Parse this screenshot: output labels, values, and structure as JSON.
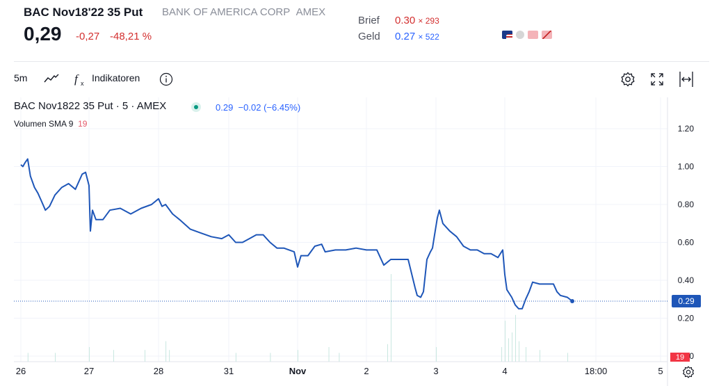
{
  "quote": {
    "symbol": "BAC Nov18'22 35 Put",
    "company": "BANK OF AMERICA CORP",
    "exchange": "AMEX",
    "last": "0,29",
    "change": "-0,27",
    "change_pct": "-48,21 %",
    "ask_label": "Brief",
    "ask_price": "0.30",
    "ask_size": "× 293",
    "bid_label": "Geld",
    "bid_price": "0.27",
    "bid_size": "× 522",
    "colors": {
      "down": "#d32f2f",
      "bid": "#2962ff"
    }
  },
  "toolbar": {
    "interval": "5m",
    "indicators_label": "Indikatoren",
    "icons": [
      "line-chart-icon",
      "fx-icon",
      "info-icon",
      "settings-gear-icon",
      "fullscreen-icon",
      "expand-horizontal-icon"
    ]
  },
  "legend": {
    "title": "BAC Nov1822 35 Put · 5 · AMEX",
    "last": "0.29",
    "change": "−0.02",
    "change_pct": "(−6.45%)",
    "volume_label": "Volumen SMA 9",
    "volume_value": "19"
  },
  "chart_data": {
    "type": "line",
    "title": "BAC Nov1822 35 Put · 5 · AMEX",
    "x_ticks": [
      "26",
      "27",
      "28",
      "31",
      "Nov",
      "2",
      "3",
      "4",
      "18:00",
      "5"
    ],
    "y_ticks": [
      "1.20",
      "1.00",
      "0.80",
      "0.60",
      "0.40",
      "0.20",
      "0.00"
    ],
    "ylim": [
      0,
      1.3
    ],
    "grid": true,
    "line_color": "#1e56b8",
    "last_value_label": "0.29",
    "volume_sma_label": "19",
    "series": [
      {
        "values": [
          [
            0.0,
            1.01
          ],
          [
            0.03,
            1.0
          ],
          [
            0.06,
            1.02
          ],
          [
            0.1,
            1.04
          ],
          [
            0.14,
            0.95
          ],
          [
            0.2,
            0.89
          ],
          [
            0.25,
            0.86
          ],
          [
            0.3,
            0.82
          ],
          [
            0.36,
            0.77
          ],
          [
            0.42,
            0.79
          ],
          [
            0.5,
            0.85
          ],
          [
            0.6,
            0.89
          ],
          [
            0.7,
            0.91
          ],
          [
            0.8,
            0.88
          ],
          [
            0.9,
            0.96
          ],
          [
            0.95,
            0.97
          ],
          [
            1.0,
            0.9
          ],
          [
            1.02,
            0.66
          ],
          [
            1.05,
            0.77
          ],
          [
            1.1,
            0.72
          ],
          [
            1.2,
            0.72
          ],
          [
            1.3,
            0.77
          ],
          [
            1.45,
            0.78
          ],
          [
            1.6,
            0.75
          ],
          [
            1.75,
            0.78
          ],
          [
            1.9,
            0.8
          ],
          [
            2.0,
            0.83
          ],
          [
            2.05,
            0.79
          ],
          [
            2.1,
            0.8
          ],
          [
            2.2,
            0.75
          ],
          [
            2.3,
            0.72
          ],
          [
            2.45,
            0.67
          ],
          [
            2.6,
            0.65
          ],
          [
            2.75,
            0.63
          ],
          [
            2.9,
            0.62
          ],
          [
            3.0,
            0.64
          ],
          [
            3.1,
            0.6
          ],
          [
            3.2,
            0.6
          ],
          [
            3.3,
            0.62
          ],
          [
            3.4,
            0.64
          ],
          [
            3.5,
            0.64
          ],
          [
            3.6,
            0.6
          ],
          [
            3.7,
            0.57
          ],
          [
            3.8,
            0.57
          ],
          [
            3.95,
            0.55
          ],
          [
            4.0,
            0.47
          ],
          [
            4.05,
            0.53
          ],
          [
            4.15,
            0.53
          ],
          [
            4.25,
            0.58
          ],
          [
            4.35,
            0.59
          ],
          [
            4.4,
            0.55
          ],
          [
            4.55,
            0.56
          ],
          [
            4.7,
            0.56
          ],
          [
            4.85,
            0.57
          ],
          [
            5.0,
            0.56
          ],
          [
            5.15,
            0.56
          ],
          [
            5.25,
            0.48
          ],
          [
            5.35,
            0.51
          ],
          [
            5.5,
            0.51
          ],
          [
            5.6,
            0.51
          ],
          [
            5.7,
            0.36
          ],
          [
            5.73,
            0.32
          ],
          [
            5.78,
            0.31
          ],
          [
            5.82,
            0.34
          ],
          [
            5.87,
            0.51
          ],
          [
            5.92,
            0.55
          ],
          [
            5.95,
            0.57
          ],
          [
            5.98,
            0.64
          ],
          [
            6.02,
            0.73
          ],
          [
            6.05,
            0.77
          ],
          [
            6.1,
            0.7
          ],
          [
            6.2,
            0.66
          ],
          [
            6.3,
            0.63
          ],
          [
            6.4,
            0.58
          ],
          [
            6.5,
            0.56
          ],
          [
            6.6,
            0.56
          ],
          [
            6.7,
            0.54
          ],
          [
            6.8,
            0.54
          ],
          [
            6.9,
            0.52
          ],
          [
            6.97,
            0.56
          ],
          [
            7.0,
            0.43
          ],
          [
            7.03,
            0.35
          ],
          [
            7.1,
            0.31
          ],
          [
            7.15,
            0.27
          ],
          [
            7.2,
            0.25
          ],
          [
            7.25,
            0.25
          ],
          [
            7.3,
            0.3
          ],
          [
            7.35,
            0.34
          ],
          [
            7.4,
            0.39
          ],
          [
            7.5,
            0.38
          ],
          [
            7.6,
            0.38
          ],
          [
            7.7,
            0.38
          ],
          [
            7.75,
            0.34
          ],
          [
            7.8,
            0.32
          ],
          [
            7.9,
            0.31
          ],
          [
            7.97,
            0.29
          ]
        ]
      }
    ],
    "volume": [
      [
        0.1,
        0.3
      ],
      [
        0.5,
        0.3
      ],
      [
        1.0,
        0.5
      ],
      [
        1.35,
        0.4
      ],
      [
        1.8,
        0.4
      ],
      [
        2.1,
        0.7
      ],
      [
        2.15,
        0.4
      ],
      [
        3.1,
        0.3
      ],
      [
        3.6,
        0.3
      ],
      [
        4.0,
        0.4
      ],
      [
        4.45,
        0.5
      ],
      [
        4.6,
        0.3
      ],
      [
        5.3,
        0.6
      ],
      [
        5.35,
        3.0
      ],
      [
        6.0,
        0.5
      ],
      [
        6.95,
        0.5
      ],
      [
        7.0,
        1.4
      ],
      [
        7.05,
        0.8
      ],
      [
        7.1,
        1.0
      ],
      [
        7.15,
        1.6
      ],
      [
        7.2,
        0.7
      ],
      [
        7.3,
        0.5
      ],
      [
        7.5,
        0.4
      ],
      [
        7.9,
        0.3
      ]
    ]
  }
}
